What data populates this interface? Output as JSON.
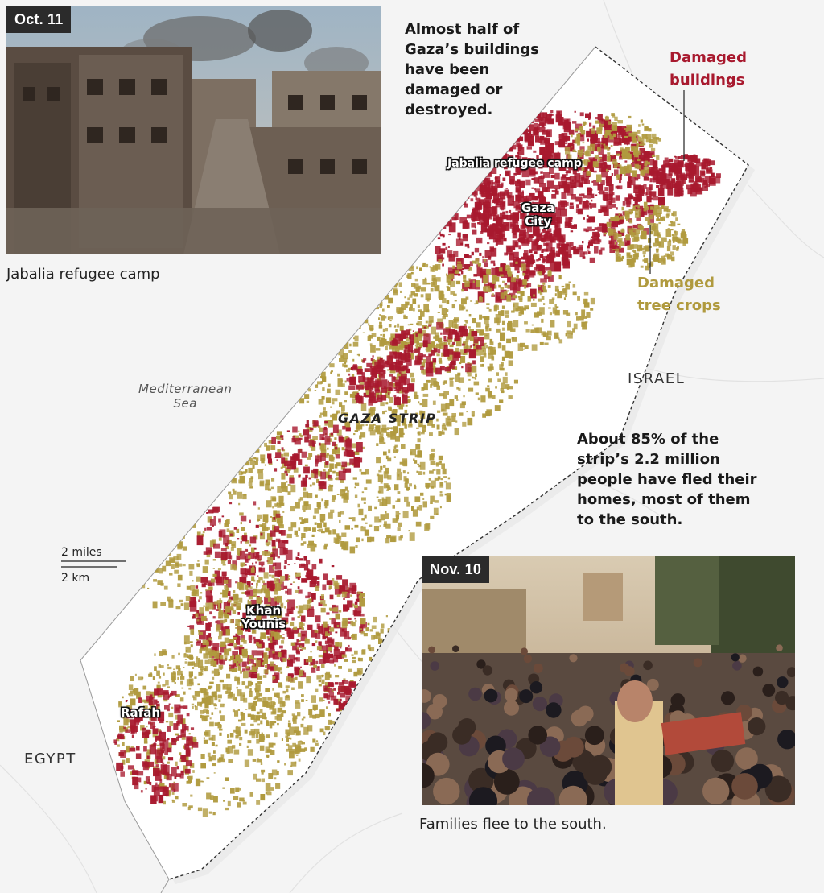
{
  "photos": {
    "top": {
      "tag": "Oct. 11",
      "caption": "Jabalia refugee camp"
    },
    "bottom": {
      "tag": "Nov. 10",
      "caption": "Families flee to the south."
    }
  },
  "annotations": {
    "top_note": [
      "Almost half of",
      "Gaza’s buildings",
      "have been",
      "damaged or",
      "destroyed."
    ],
    "bottom_note": [
      "About 85% of the",
      "strip’s 2.2 million",
      "people have fled their",
      "homes, most of them",
      "to the south."
    ]
  },
  "legend": {
    "damaged_buildings": {
      "lines": [
        "Damaged",
        "buildings"
      ],
      "color": "#a8192e"
    },
    "damaged_tree_crops": {
      "lines": [
        "Damaged",
        "tree crops"
      ],
      "color": "#b09a3e"
    }
  },
  "places": {
    "sea": [
      "Mediterranean",
      "Sea"
    ],
    "strip": "GAZA STRIP",
    "israel": "ISRAEL",
    "egypt": "EGYPT"
  },
  "cities": {
    "jabalia": "Jabalia refugee camp",
    "gaza_city": [
      "Gaza",
      "City"
    ],
    "khan_younis": [
      "Khan",
      "Younis"
    ],
    "rafah": "Rafah"
  },
  "scale": {
    "miles": "2 miles",
    "km": "2 km"
  },
  "colors": {
    "buildings": "#a8192e",
    "crops": "#b09a3e",
    "land": "#ffffff",
    "background": "#f4f4f4"
  }
}
